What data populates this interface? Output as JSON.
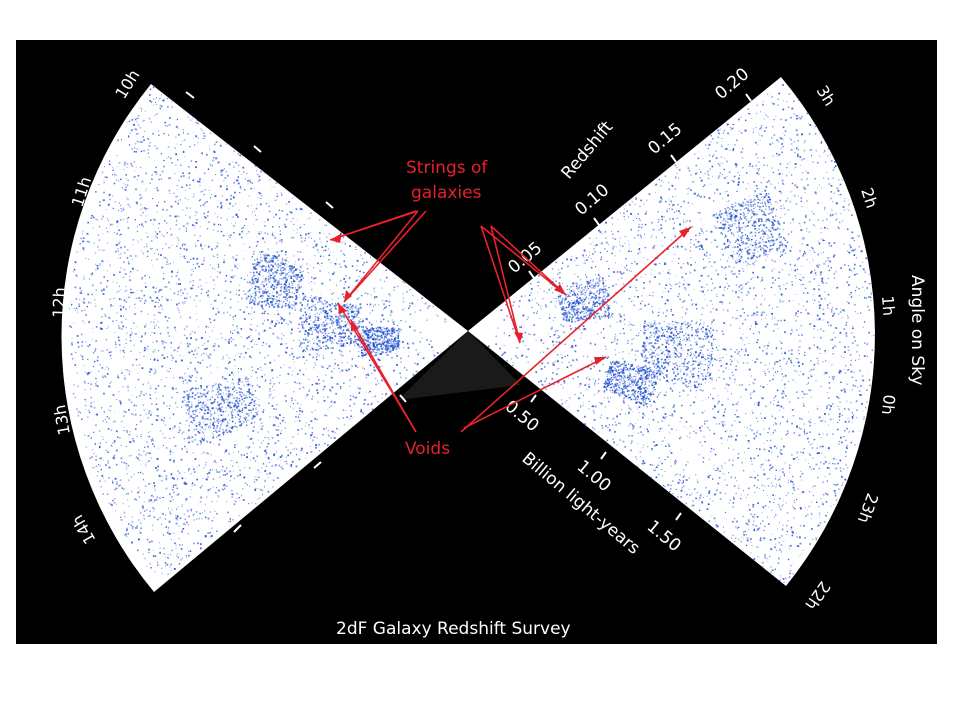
{
  "title": "2dF Galaxy Redshift Survey",
  "annotations": {
    "strings": [
      "Strings of",
      "galaxies"
    ],
    "voids": "Voids"
  },
  "axes": {
    "redshift_label": "Redshift",
    "redshift_ticks": [
      "0.05",
      "0.10",
      "0.15",
      "0.20"
    ],
    "distance_label": "Billion light-years",
    "distance_ticks": [
      "0.50",
      "1.00",
      "1.50"
    ],
    "angle_label": "Angle on Sky",
    "left_hours": [
      "10h",
      "11h",
      "12h",
      "13h",
      "14h"
    ],
    "right_hours": [
      "3h",
      "2h",
      "1h",
      "0h",
      "23h",
      "22h"
    ]
  },
  "colors": {
    "background": "#000000",
    "wedge": "#ffffff",
    "galaxies": "#1f4fd0",
    "annotation": "#e8202c"
  }
}
